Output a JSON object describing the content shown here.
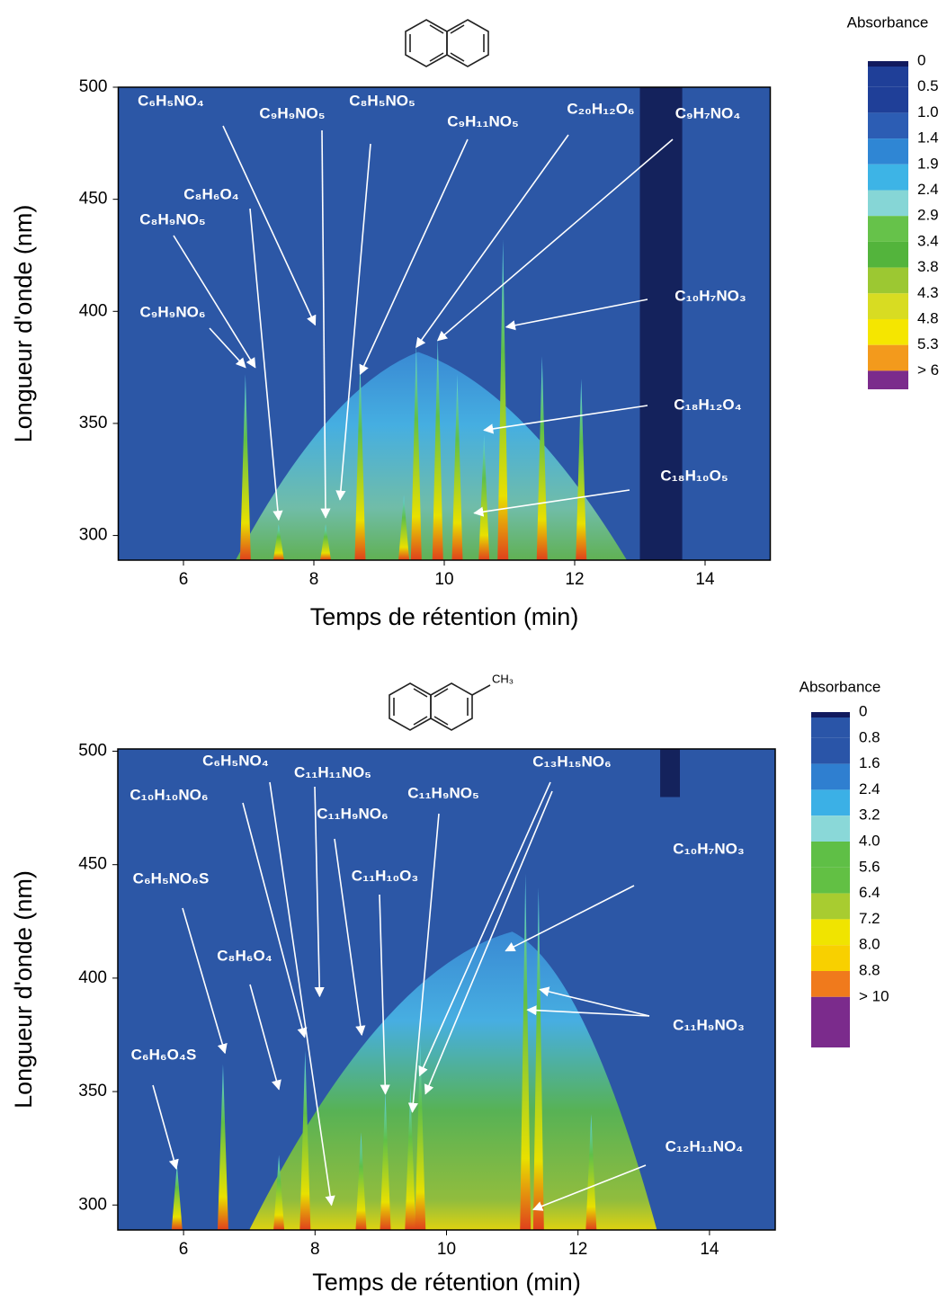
{
  "chart_data": [
    {
      "type": "heatmap",
      "xlabel": "Temps de rétention (min)",
      "ylabel": "Longueur d'onde (nm)",
      "xlim": [
        5,
        15
      ],
      "ylim": [
        289,
        500
      ],
      "xticks": [
        6,
        8,
        10,
        12,
        14
      ],
      "yticks": [
        300,
        350,
        400,
        450,
        500
      ],
      "colorbar": {
        "label": "Absorbance",
        "ticks": [
          0,
          0.5,
          {
            "value": 1,
            "label": "1.0"
          },
          1.4,
          1.9,
          2.4,
          2.9,
          3.4,
          3.8,
          4.3,
          4.8,
          5.3,
          {
            "value": 6,
            "label": "> 6"
          }
        ],
        "colors": [
          "#111a5e",
          "#1f3f98",
          "#2c5db4",
          "#2f86d4",
          "#3db4e6",
          "#86d6d6",
          "#66c24a",
          "#53b43c",
          "#9cc832",
          "#d8dc22",
          "#f5e600",
          "#f39a1c",
          "#7b2b8c"
        ]
      },
      "background": "#2c57a6",
      "peaks": [
        {
          "x": 6.95,
          "top": 372
        },
        {
          "x": 7.46,
          "top": 305
        },
        {
          "x": 8.18,
          "top": 305
        },
        {
          "x": 8.71,
          "top": 378
        },
        {
          "x": 9.38,
          "top": 318
        },
        {
          "x": 9.57,
          "top": 386
        },
        {
          "x": 9.9,
          "top": 388
        },
        {
          "x": 10.2,
          "top": 372
        },
        {
          "x": 10.61,
          "top": 345
        },
        {
          "x": 10.9,
          "top": 432
        },
        {
          "x": 11.5,
          "top": 380
        },
        {
          "x": 12.1,
          "top": 370
        }
      ],
      "annotations": [
        {
          "text": "C₆H₅NO₄",
          "targets": [
            [
              8.02,
              394
            ]
          ]
        },
        {
          "text": "C₉H₉NO₅",
          "targets": [
            [
              8.18,
              308
            ]
          ]
        },
        {
          "text": "C₈H₅NO₅",
          "targets": [
            [
              8.4,
              316
            ]
          ]
        },
        {
          "text": "C₉H₁₁NO₅",
          "targets": [
            [
              8.71,
              372
            ]
          ]
        },
        {
          "text": "C₂₀H₁₂O₆",
          "targets": [
            [
              9.57,
              384
            ]
          ]
        },
        {
          "text": "C₉H₇NO₄",
          "targets": [
            [
              9.9,
              387
            ]
          ]
        },
        {
          "text": "C₈H₆O₄",
          "targets": [
            [
              7.46,
              307
            ]
          ]
        },
        {
          "text": "C₈H₉NO₅",
          "targets": [
            [
              7.1,
              375
            ]
          ]
        },
        {
          "text": "C₉H₉NO₆",
          "targets": [
            [
              6.95,
              375
            ]
          ]
        },
        {
          "text": "C₁₀H₇NO₃",
          "targets": [
            [
              10.95,
              393
            ]
          ]
        },
        {
          "text": "C₁₈H₁₂O₄",
          "targets": [
            [
              10.61,
              347
            ]
          ]
        },
        {
          "text": "C₁₈H₁₀O₅",
          "targets": [
            [
              10.46,
              310
            ]
          ]
        }
      ]
    },
    {
      "type": "heatmap",
      "xlabel": "Temps de rétention (min)",
      "ylabel": "Longueur d'onde (nm)",
      "structure_label": "CH₃",
      "xlim": [
        5,
        15
      ],
      "ylim": [
        289,
        501
      ],
      "xticks": [
        6,
        8,
        10,
        12,
        14
      ],
      "yticks": [
        300,
        350,
        400,
        450,
        500
      ],
      "colorbar": {
        "label": "Absorbance",
        "ticks": [
          0,
          0.8,
          1.6,
          2.4,
          3.2,
          {
            "value": 4,
            "label": "4.0"
          },
          5.6,
          6.4,
          7.2,
          {
            "value": 8,
            "label": "8.0"
          },
          8.8,
          {
            "value": 10,
            "label": "> 10"
          }
        ],
        "colors": [
          "#111a5e",
          "#2a55a8",
          "#2f7fd0",
          "#3bb0e6",
          "#8ad8d8",
          "#5fbf46",
          "#62c044",
          "#a8cc30",
          "#f0e400",
          "#f8d000",
          "#f07a1c",
          "#7b2b8c"
        ]
      },
      "background": "#2c57a6",
      "peaks": [
        {
          "x": 5.9,
          "top": 318
        },
        {
          "x": 6.6,
          "top": 362
        },
        {
          "x": 7.45,
          "top": 322
        },
        {
          "x": 7.85,
          "top": 368
        },
        {
          "x": 8.7,
          "top": 332
        },
        {
          "x": 9.07,
          "top": 350
        },
        {
          "x": 9.45,
          "top": 352
        },
        {
          "x": 9.6,
          "top": 372
        },
        {
          "x": 11.2,
          "top": 446
        },
        {
          "x": 11.4,
          "top": 440
        },
        {
          "x": 12.2,
          "top": 340
        }
      ],
      "annotations": [
        {
          "text": "C₁₀H₁₀NO₆",
          "targets": [
            [
              7.84,
              374
            ]
          ]
        },
        {
          "text": "C₆H₅NO₄",
          "targets": [
            [
              8.25,
              300
            ]
          ]
        },
        {
          "text": "C₁₁H₁₁NO₅",
          "targets": [
            [
              8.07,
              392
            ]
          ]
        },
        {
          "text": "C₁₁H₉NO₆",
          "targets": [
            [
              8.71,
              375
            ]
          ]
        },
        {
          "text": "C₁₁H₉NO₅",
          "targets": [
            [
              9.48,
              341
            ]
          ]
        },
        {
          "text": "C₁₁H₁₀O₃",
          "targets": [
            [
              9.07,
              349
            ]
          ]
        },
        {
          "text": "C₁₃H₁₅NO₆",
          "targets": [
            [
              9.59,
              357
            ],
            [
              9.68,
              349
            ]
          ]
        },
        {
          "text": "C₁₀H₇NO₃",
          "targets": [
            [
              10.9,
              412
            ]
          ]
        },
        {
          "text": "C₆H₅NO₆S",
          "targets": [
            [
              6.63,
              367
            ]
          ]
        },
        {
          "text": "C₈H₆O₄",
          "targets": [
            [
              7.45,
              351
            ]
          ]
        },
        {
          "text": "C₆H₆O₄S",
          "targets": [
            [
              5.89,
              316
            ]
          ]
        },
        {
          "text": "C₁₁H₉NO₃",
          "targets": [
            [
              11.23,
              386
            ],
            [
              11.42,
              395
            ]
          ]
        },
        {
          "text": "C₁₂H₁₁NO₄",
          "targets": [
            [
              11.32,
              298
            ]
          ]
        }
      ]
    }
  ]
}
